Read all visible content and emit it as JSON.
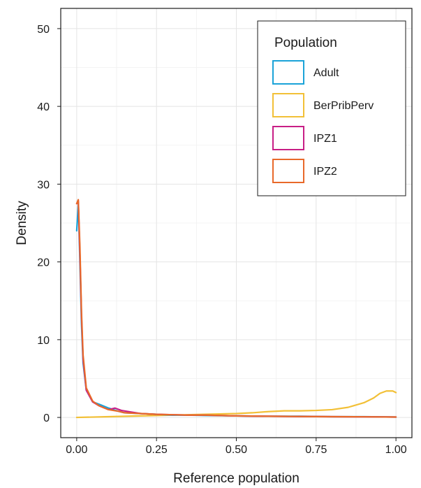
{
  "chart_data": {
    "type": "line",
    "xlabel": "Reference population",
    "ylabel": "Density",
    "xlim": [
      -0.05,
      1.05
    ],
    "ylim": [
      -2.6,
      52.6
    ],
    "x_ticks": [
      0.0,
      0.25,
      0.5,
      0.75,
      1.0
    ],
    "x_tick_labels": [
      "0.00",
      "0.25",
      "0.50",
      "0.75",
      "1.00"
    ],
    "y_ticks": [
      0,
      10,
      20,
      30,
      40,
      50
    ],
    "y_tick_labels": [
      "0",
      "10",
      "20",
      "30",
      "40",
      "50"
    ],
    "grid": true,
    "legend": {
      "title": "Population",
      "placement": "top-right",
      "entries": [
        "Adult",
        "BerPribPerv",
        "IPZ1",
        "IPZ2"
      ]
    },
    "series": [
      {
        "name": "Adult",
        "color": "#1ba3d8",
        "x": [
          0.0,
          0.005,
          0.01,
          0.015,
          0.02,
          0.03,
          0.05,
          0.07,
          0.1,
          0.13,
          0.15,
          0.2,
          0.25,
          0.3,
          0.35,
          0.4,
          0.5,
          0.6,
          0.7,
          0.8,
          0.9,
          1.0
        ],
        "y": [
          24.0,
          27.5,
          20.0,
          12.0,
          7.0,
          3.5,
          2.0,
          1.7,
          1.2,
          0.8,
          0.6,
          0.5,
          0.4,
          0.3,
          0.3,
          0.25,
          0.2,
          0.15,
          0.15,
          0.1,
          0.1,
          0.05
        ]
      },
      {
        "name": "BerPribPerv",
        "color": "#f2c037",
        "x": [
          0.0,
          0.1,
          0.2,
          0.3,
          0.4,
          0.5,
          0.55,
          0.6,
          0.65,
          0.7,
          0.75,
          0.8,
          0.85,
          0.9,
          0.93,
          0.95,
          0.97,
          0.99,
          1.0
        ],
        "y": [
          0.0,
          0.1,
          0.2,
          0.3,
          0.4,
          0.5,
          0.6,
          0.75,
          0.85,
          0.85,
          0.9,
          1.0,
          1.3,
          1.9,
          2.5,
          3.1,
          3.4,
          3.4,
          3.2
        ]
      },
      {
        "name": "IPZ1",
        "color": "#c81e86",
        "x": [
          0.0,
          0.005,
          0.01,
          0.015,
          0.02,
          0.03,
          0.05,
          0.07,
          0.1,
          0.12,
          0.14,
          0.17,
          0.2,
          0.25,
          0.3,
          0.35,
          0.4,
          0.5,
          0.6,
          0.7,
          0.8,
          0.9,
          1.0
        ],
        "y": [
          27.5,
          27.8,
          21.0,
          13.0,
          7.5,
          3.5,
          2.0,
          1.5,
          1.0,
          1.2,
          0.9,
          0.7,
          0.5,
          0.4,
          0.35,
          0.3,
          0.3,
          0.2,
          0.15,
          0.12,
          0.1,
          0.08,
          0.05
        ]
      },
      {
        "name": "IPZ2",
        "color": "#e8692a",
        "x": [
          0.0,
          0.005,
          0.01,
          0.015,
          0.02,
          0.03,
          0.05,
          0.07,
          0.1,
          0.13,
          0.15,
          0.2,
          0.25,
          0.3,
          0.35,
          0.4,
          0.5,
          0.6,
          0.7,
          0.8,
          0.9,
          1.0
        ],
        "y": [
          27.5,
          28.0,
          22.0,
          13.5,
          8.0,
          3.8,
          2.1,
          1.5,
          1.0,
          0.8,
          0.6,
          0.5,
          0.4,
          0.35,
          0.3,
          0.3,
          0.2,
          0.15,
          0.12,
          0.1,
          0.08,
          0.05
        ]
      }
    ]
  }
}
